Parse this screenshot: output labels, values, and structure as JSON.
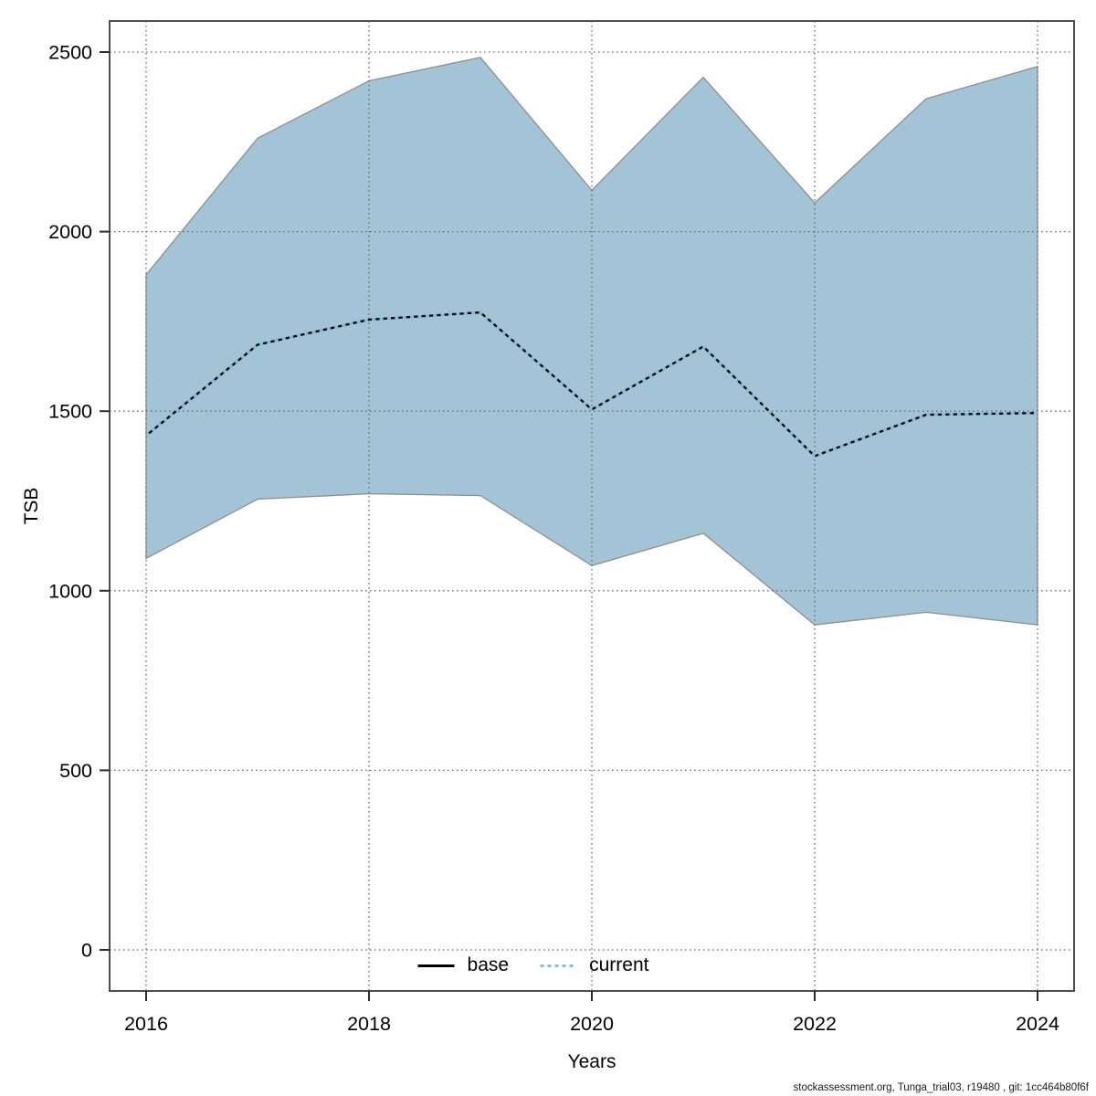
{
  "chart_data": {
    "type": "line",
    "title": "",
    "xlabel": "Years",
    "ylabel": "TSB",
    "x": [
      2016,
      2017,
      2018,
      2019,
      2020,
      2021,
      2022,
      2023,
      2024
    ],
    "series": [
      {
        "name": "base",
        "line_style": "solid",
        "color": "#000000",
        "values": [
          1432,
          1685,
          1755,
          1775,
          1505,
          1680,
          1375,
          1490,
          1495
        ]
      },
      {
        "name": "current",
        "line_style": "dotted",
        "color": "#7fbedd",
        "values": [
          1432,
          1685,
          1755,
          1775,
          1505,
          1680,
          1375,
          1490,
          1495
        ]
      }
    ],
    "band": {
      "name": "confidence-band",
      "fill": "#a3c4d6",
      "stroke": "#8f8f8f",
      "lower": [
        1090,
        1255,
        1270,
        1265,
        1070,
        1160,
        905,
        940,
        905
      ],
      "upper": [
        1880,
        2260,
        2420,
        2485,
        2115,
        2430,
        2080,
        2370,
        2460
      ]
    },
    "xticks": [
      2016,
      2018,
      2020,
      2022,
      2024
    ],
    "yticks": [
      0,
      500,
      1000,
      1500,
      2000,
      2500
    ],
    "xlim": [
      2016,
      2024
    ],
    "ylim": [
      0,
      2500
    ],
    "grid": "dotted",
    "legend_position": "bottom-center"
  },
  "legend": {
    "items": [
      {
        "label": "base",
        "style": "solid",
        "color": "#000000"
      },
      {
        "label": "current",
        "style": "dotted",
        "color": "#7fbedd"
      }
    ]
  },
  "footer": {
    "text": "stockassessment.org, Tunga_trial03, r19480 , git: 1cc464b80f6f"
  }
}
